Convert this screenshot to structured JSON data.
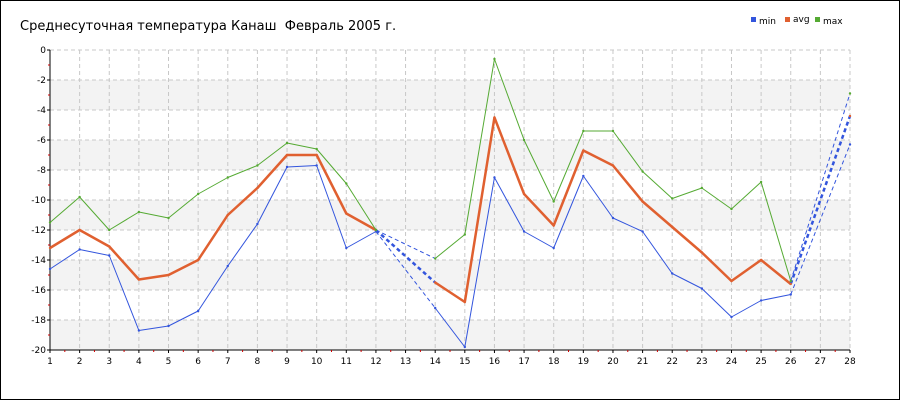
{
  "chart_data": {
    "type": "line",
    "title": "Среднесуточная температура Канаш  Февраль 2005 г.",
    "xlabel": "",
    "ylabel": "",
    "x": [
      1,
      2,
      3,
      4,
      5,
      6,
      7,
      8,
      9,
      10,
      11,
      12,
      13,
      14,
      15,
      16,
      17,
      18,
      19,
      20,
      21,
      22,
      23,
      24,
      25,
      26,
      27,
      28
    ],
    "xlim": [
      1,
      28
    ],
    "ylim": [
      -20,
      0
    ],
    "yticks": [
      0,
      -2,
      -4,
      -6,
      -8,
      -10,
      -12,
      -14,
      -16,
      -18,
      -20
    ],
    "grid": true,
    "legend": "top-right",
    "series": [
      {
        "name": "min",
        "color": "#3355dd",
        "values": [
          -14.6,
          -13.3,
          -13.7,
          -18.7,
          -18.4,
          -17.4,
          -14.4,
          -11.6,
          -7.8,
          -7.7,
          -13.2,
          -12.1,
          null,
          -17.2,
          -19.8,
          -8.5,
          -12.1,
          -13.2,
          -8.4,
          -11.2,
          -12.1,
          -14.9,
          -15.9,
          -17.8,
          -16.7,
          -16.3,
          null,
          -6.3
        ]
      },
      {
        "name": "avg",
        "color": "#e06030",
        "values": [
          -13.2,
          -12.0,
          -13.1,
          -15.3,
          -15.0,
          -14.0,
          -11.0,
          -9.2,
          -7.0,
          -7.0,
          -10.9,
          -12.0,
          null,
          -15.5,
          -16.8,
          -4.5,
          -9.6,
          -11.7,
          -6.7,
          -7.7,
          -10.1,
          -11.8,
          -13.5,
          -15.4,
          -14.0,
          -15.6,
          null,
          -4.4
        ]
      },
      {
        "name": "max",
        "color": "#55aa33",
        "values": [
          -11.5,
          -9.8,
          -12.0,
          -10.8,
          -11.2,
          -9.6,
          -8.5,
          -7.7,
          -6.2,
          -6.6,
          -8.9,
          -12.0,
          null,
          -13.9,
          -12.3,
          -0.6,
          -6.0,
          -10.1,
          -5.4,
          -5.4,
          -8.1,
          -9.9,
          -9.2,
          -10.6,
          -8.8,
          -15.4,
          null,
          -2.9
        ]
      }
    ]
  }
}
